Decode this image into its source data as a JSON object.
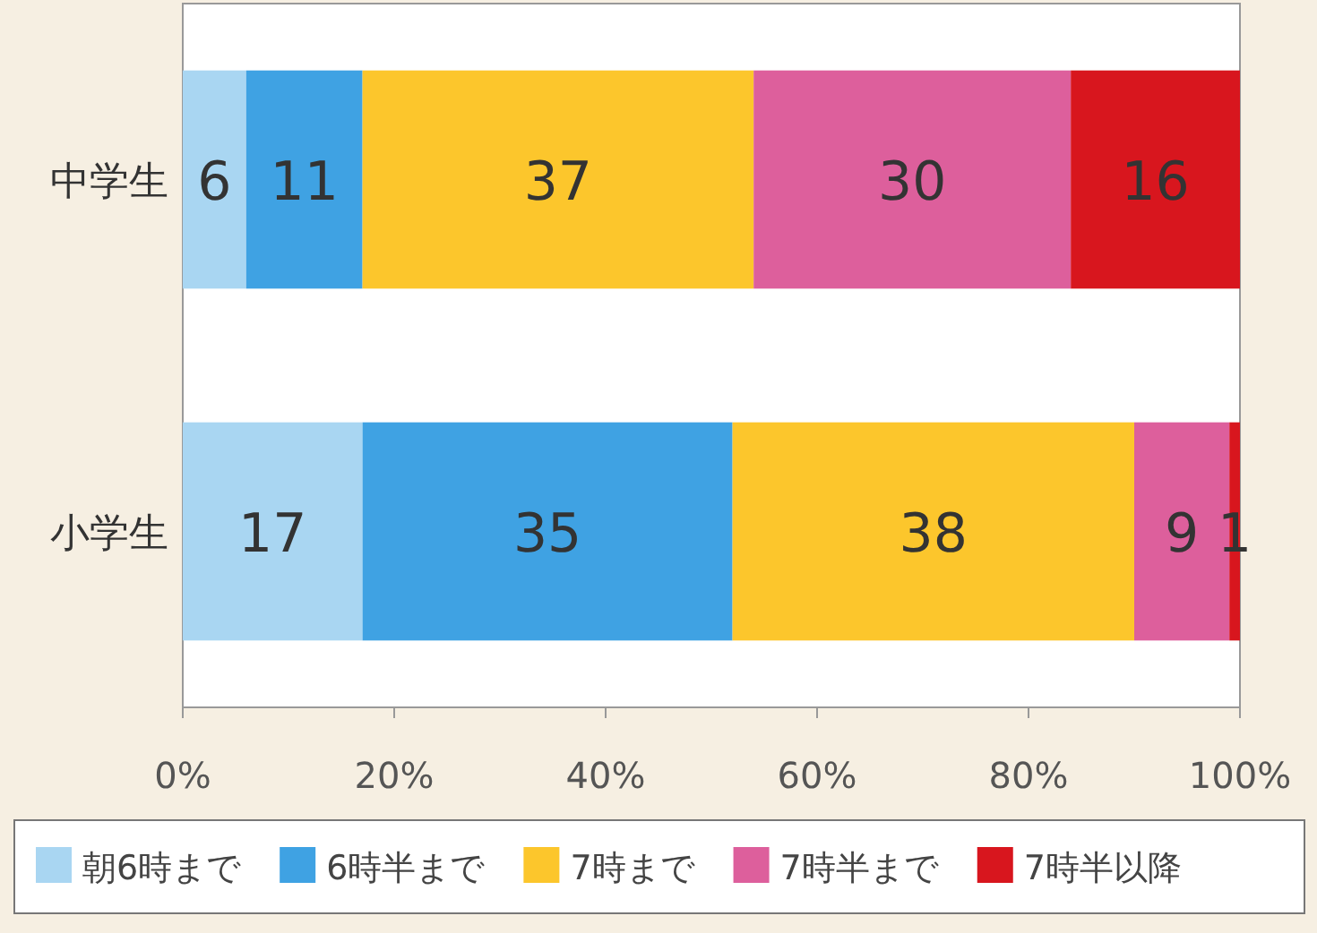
{
  "chart_data": {
    "type": "bar",
    "orientation": "horizontal",
    "stacked": true,
    "categories": [
      "中学生",
      "小学生"
    ],
    "series": [
      {
        "name": "朝6時まで",
        "color": "#a9d6f2",
        "values": [
          6,
          17
        ]
      },
      {
        "name": "6時半まで",
        "color": "#3fa2e3",
        "values": [
          11,
          35
        ]
      },
      {
        "name": "7時まで",
        "color": "#fcc62c",
        "values": [
          37,
          38
        ]
      },
      {
        "name": "7時半まで",
        "color": "#dd5f9c",
        "values": [
          30,
          9
        ]
      },
      {
        "name": "7時半以降",
        "color": "#d8161e",
        "values": [
          16,
          1
        ]
      }
    ],
    "xlim": [
      0,
      100
    ],
    "xticks": [
      {
        "value": 0,
        "label": "0%"
      },
      {
        "value": 20,
        "label": "20%"
      },
      {
        "value": 40,
        "label": "40%"
      },
      {
        "value": 60,
        "label": "60%"
      },
      {
        "value": 80,
        "label": "80%"
      },
      {
        "value": 100,
        "label": "100%"
      }
    ],
    "data_labels": true,
    "legend": "bottom"
  }
}
